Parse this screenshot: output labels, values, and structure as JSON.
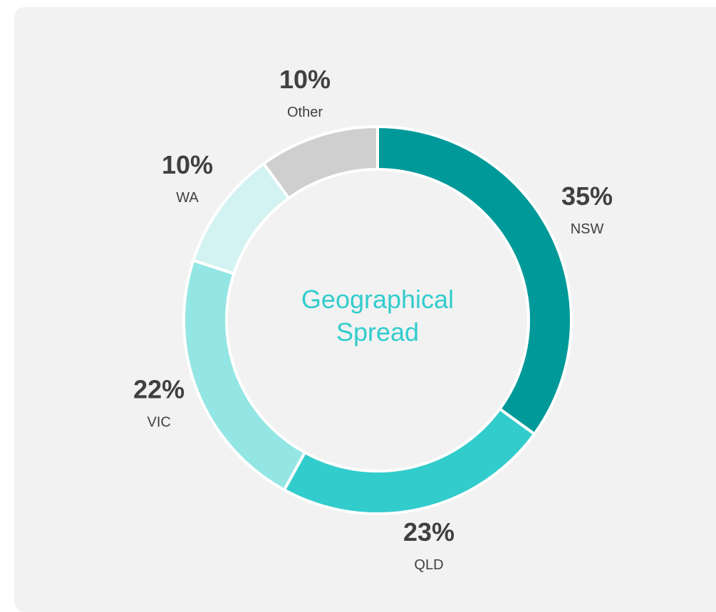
{
  "chart_data": {
    "type": "donut",
    "title": "Geographical Spread",
    "categories": [
      "NSW",
      "QLD",
      "VIC",
      "WA",
      "Other"
    ],
    "values": [
      35,
      23,
      22,
      10,
      10
    ],
    "value_labels": [
      "35%",
      "23%",
      "22%",
      "10%",
      "10%"
    ],
    "colors": [
      "#009999",
      "#33cccc",
      "#93e6e3",
      "#d3f3f2",
      "#d0cfd0"
    ]
  }
}
